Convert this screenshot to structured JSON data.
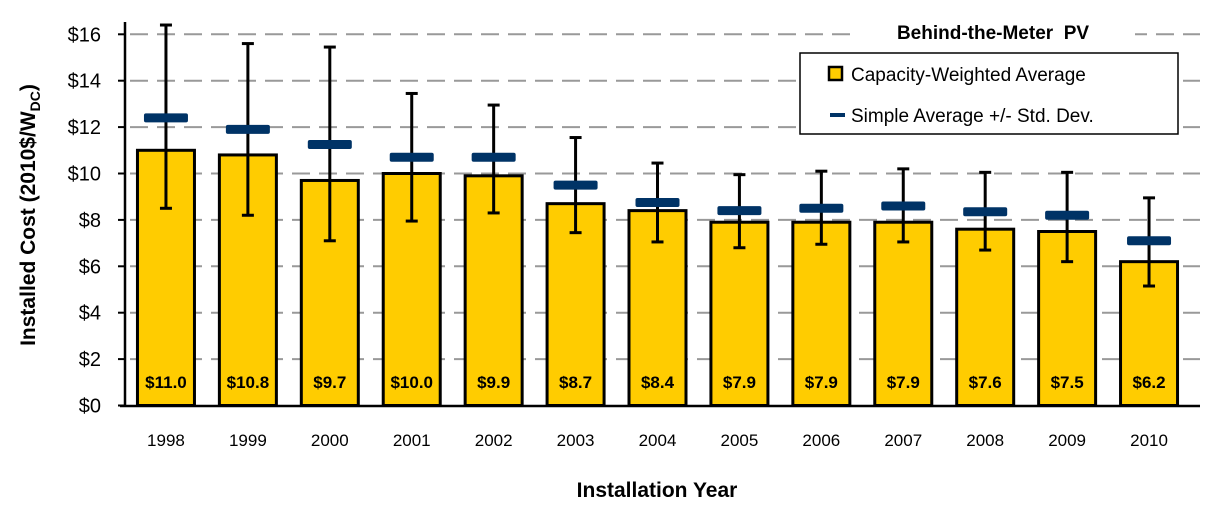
{
  "chart_data": {
    "type": "bar",
    "title": "Behind-the-Meter  PV",
    "xlabel": "Installation Year",
    "ylabel": "Installed Cost (2010$/W",
    "ylabel_subscript": "DC",
    "ylabel_close": ")",
    "ylim": [
      0,
      16
    ],
    "yticks": [
      0,
      2,
      4,
      6,
      8,
      10,
      12,
      14,
      16
    ],
    "ytick_labels": [
      "$0",
      "$2",
      "$4",
      "$6",
      "$8",
      "$10",
      "$12",
      "$14",
      "$16"
    ],
    "grid": true,
    "legend_position": "top-right",
    "categories": [
      "1998",
      "1999",
      "2000",
      "2001",
      "2002",
      "2003",
      "2004",
      "2005",
      "2006",
      "2007",
      "2008",
      "2009",
      "2010"
    ],
    "series": [
      {
        "name": "Capacity-Weighted Average",
        "kind": "bar",
        "color": "#FFCC00",
        "values": [
          11.0,
          10.8,
          9.7,
          10.0,
          9.9,
          8.7,
          8.4,
          7.9,
          7.9,
          7.9,
          7.6,
          7.5,
          6.2
        ],
        "data_labels": [
          "$11.0",
          "$10.8",
          "$9.7",
          "$10.0",
          "$9.9",
          "$8.7",
          "$8.4",
          "$7.9",
          "$7.9",
          "$7.9",
          "$7.6",
          "$7.5",
          "$6.2"
        ]
      },
      {
        "name": "Simple Average +/- Std. Dev.",
        "kind": "marker-with-errorbar",
        "color": "#003366",
        "values": [
          12.4,
          11.9,
          11.25,
          10.7,
          10.7,
          9.5,
          8.75,
          8.4,
          8.5,
          8.6,
          8.35,
          8.2,
          7.1
        ],
        "upper": [
          16.4,
          15.6,
          15.45,
          13.45,
          12.95,
          11.55,
          10.45,
          9.95,
          10.1,
          10.2,
          10.05,
          10.05,
          8.95
        ],
        "lower": [
          8.5,
          8.2,
          7.1,
          7.95,
          8.3,
          7.45,
          7.05,
          6.8,
          6.95,
          7.05,
          6.7,
          6.2,
          5.15
        ]
      }
    ]
  }
}
